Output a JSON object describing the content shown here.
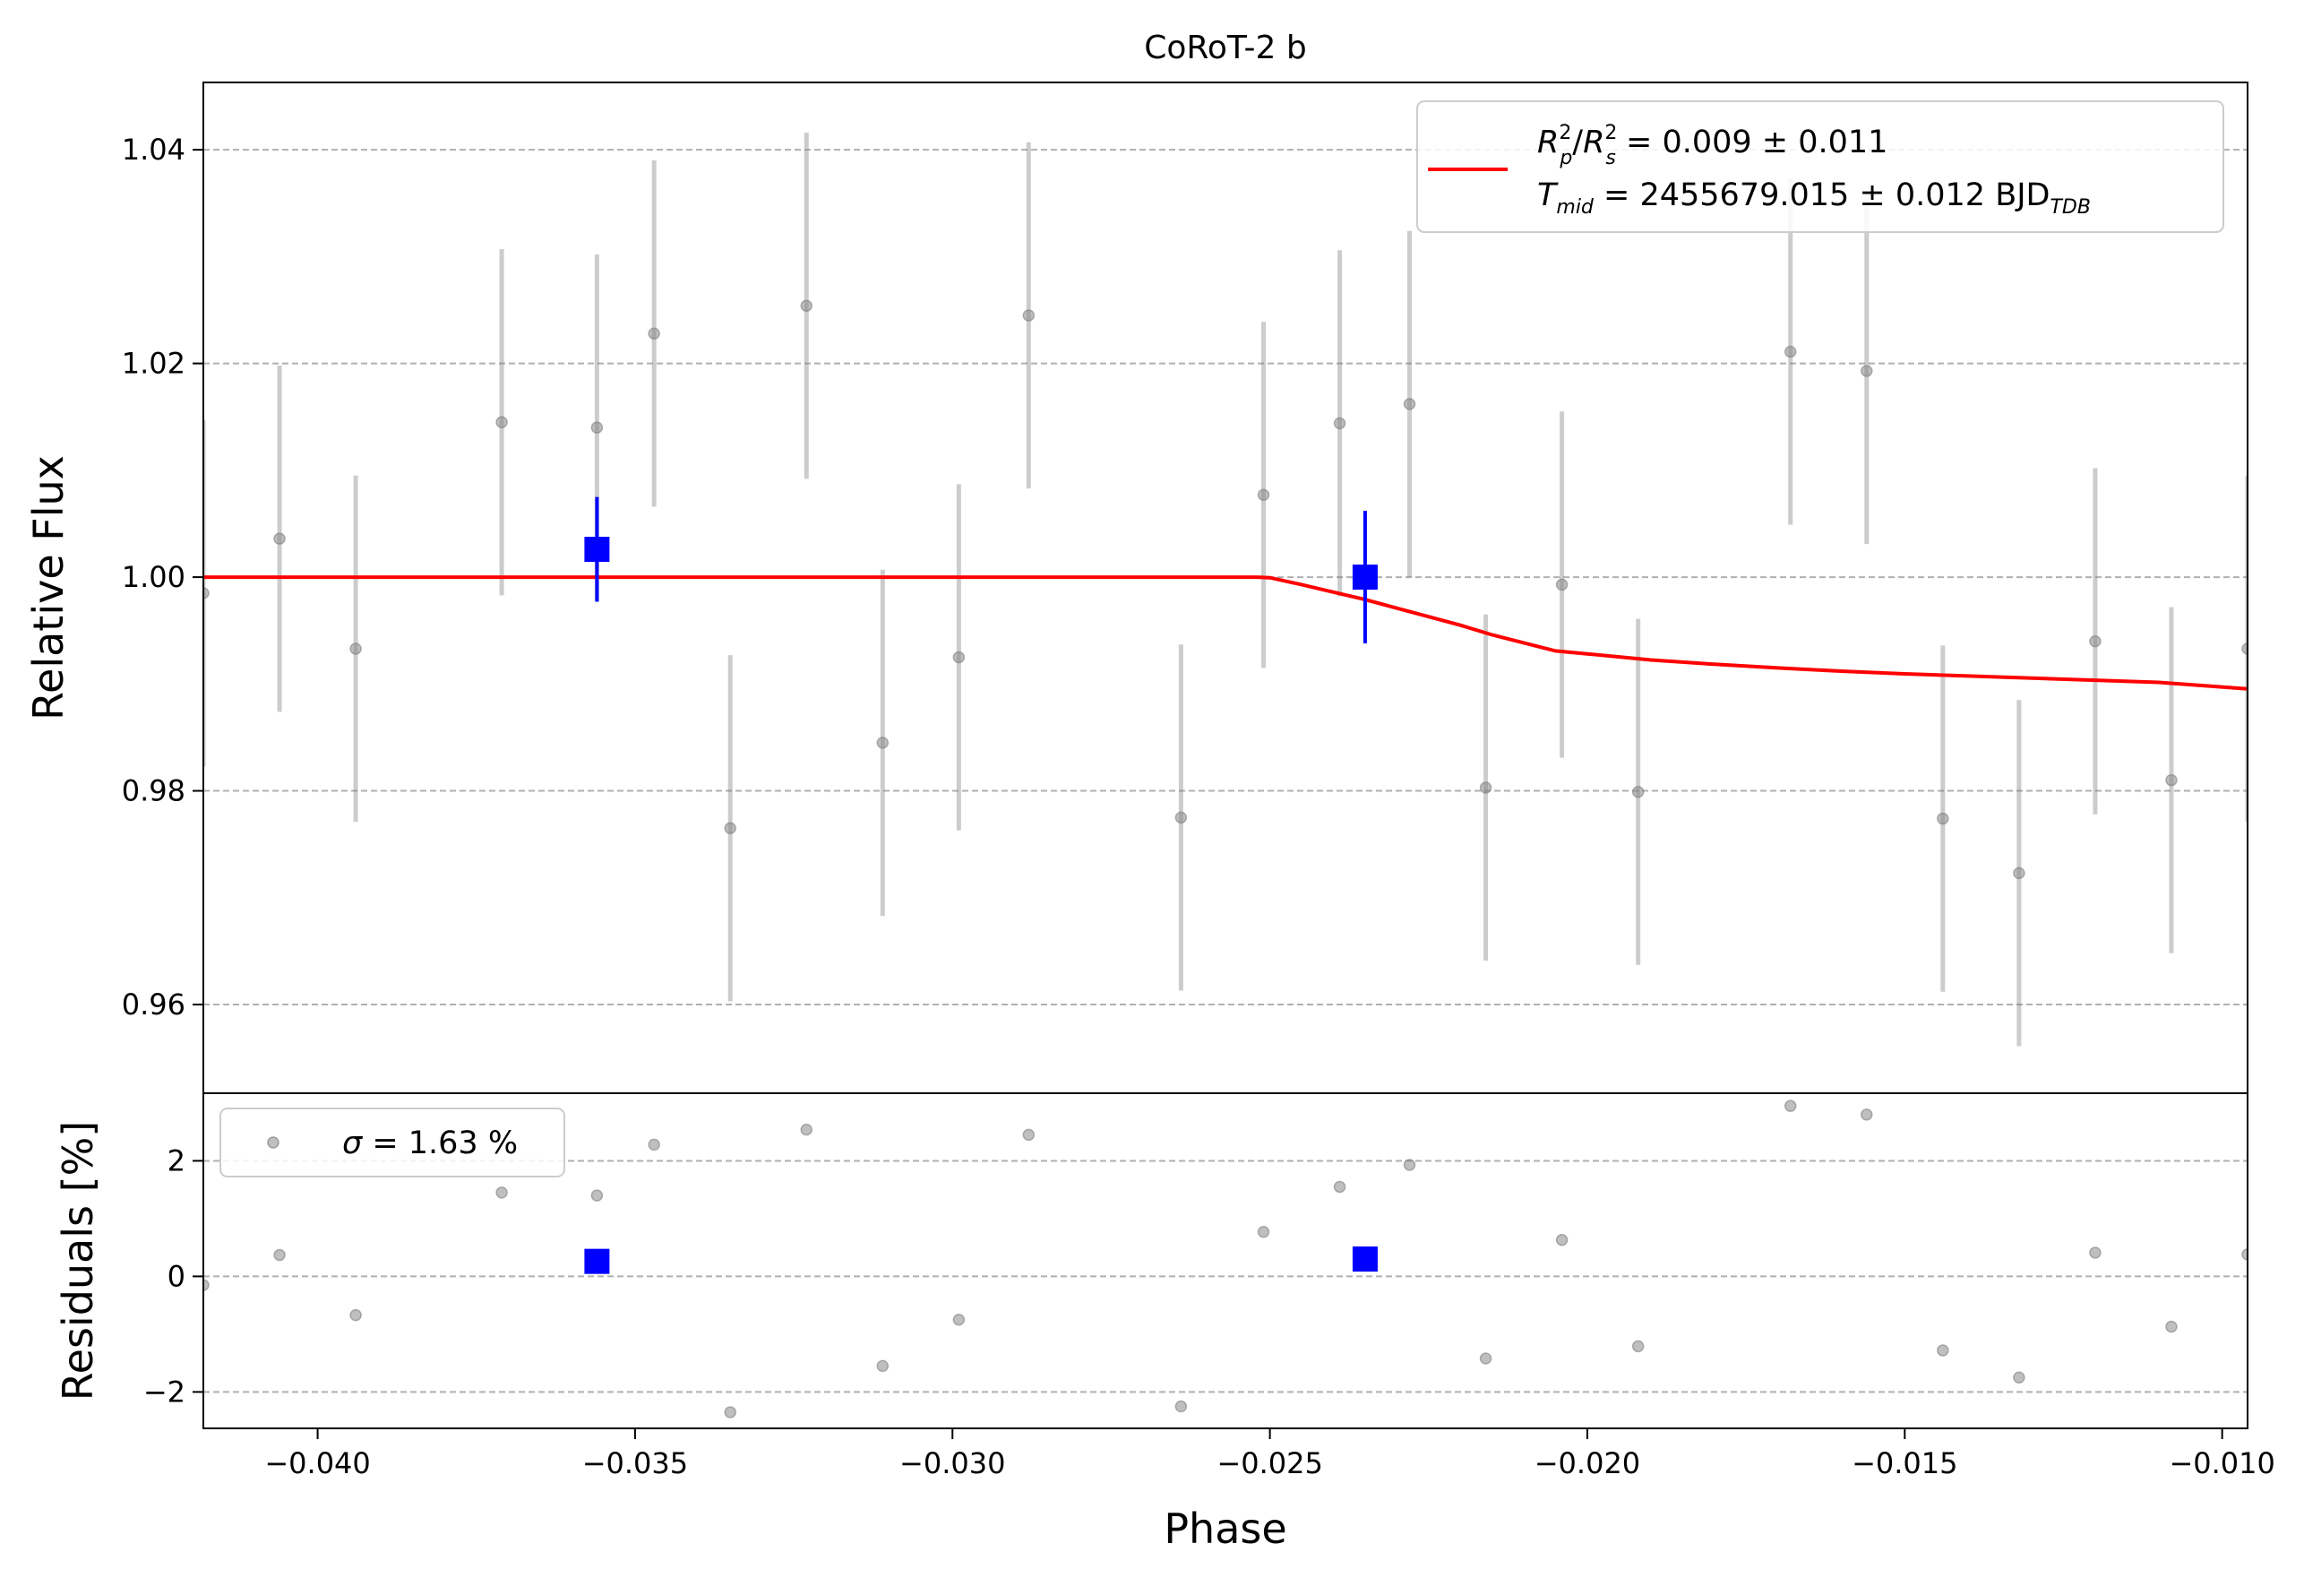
{
  "chart_data": [
    {
      "type": "scatter",
      "title": "CoRoT-2 b",
      "xlabel": "",
      "ylabel": "Relative Flux",
      "xlim": [
        -0.0418,
        -0.0096
      ],
      "ylim": [
        0.9517,
        1.0463
      ],
      "yticks": [
        0.96,
        0.98,
        1.0,
        1.02,
        1.04
      ],
      "ytick_labels": [
        "0.96",
        "0.98",
        "1.00",
        "1.02",
        "1.04"
      ],
      "grid": "horizontal dashed",
      "legend_position": "top-right",
      "legend": {
        "line1": {
          "a": "R",
          "a_sup": "2",
          "a_sub": "p",
          "sep": "/",
          "b": "R",
          "b_sup": "2",
          "b_sub": "s",
          "value": " = 0.009 ± 0.011"
        },
        "line2": {
          "a": "T",
          "a_sub": "mid",
          "value": " = 2455679.015 ± 0.012 BJD",
          "unit_sub": "TDB"
        }
      },
      "data_points": {
        "color": "#808080",
        "x": [
          -0.0418,
          -0.0406,
          -0.0394,
          -0.0371,
          -0.0356,
          -0.0347,
          -0.0335,
          -0.0323,
          -0.0311,
          -0.0299,
          -0.0288,
          -0.0264,
          -0.0251,
          -0.0239,
          -0.0228,
          -0.0216,
          -0.0204,
          -0.0192,
          -0.0168,
          -0.0156,
          -0.0144,
          -0.0132,
          -0.012,
          -0.0108,
          -0.0096
        ],
        "y": [
          0.9985,
          1.0036,
          0.9933,
          1.0145,
          1.014,
          1.0228,
          0.9765,
          1.0254,
          0.9845,
          0.9925,
          1.0245,
          0.9775,
          1.0077,
          1.0144,
          1.0162,
          0.9803,
          0.9993,
          0.9799,
          1.0211,
          1.0193,
          0.9774,
          0.9723,
          0.994,
          0.981,
          0.9933
        ],
        "yerr": [
          0.0162,
          0.0162,
          0.0162,
          0.0162,
          0.0162,
          0.0162,
          0.0162,
          0.0162,
          0.0162,
          0.0162,
          0.0162,
          0.0162,
          0.0162,
          0.0162,
          0.0162,
          0.0162,
          0.0162,
          0.0162,
          0.0162,
          0.0162,
          0.0162,
          0.0162,
          0.0162,
          0.0162,
          0.0162
        ]
      },
      "binned_points": {
        "color": "#0000ff",
        "x": [
          -0.0356,
          -0.0235
        ],
        "y": [
          1.0026,
          1.0
        ],
        "yerr": [
          0.0049,
          0.0062
        ]
      },
      "model_curve": {
        "color": "#ff0000",
        "x": [
          -0.0418,
          -0.0252,
          -0.025,
          -0.0245,
          -0.024,
          -0.0235,
          -0.023,
          -0.0225,
          -0.022,
          -0.0215,
          -0.021,
          -0.0205,
          -0.02,
          -0.019,
          -0.018,
          -0.017,
          -0.016,
          -0.015,
          -0.014,
          -0.013,
          -0.012,
          -0.011,
          -0.0096
        ],
        "y": [
          1.0,
          1.0,
          0.99995,
          0.9993,
          0.9986,
          0.9979,
          0.9971,
          0.9963,
          0.9955,
          0.9946,
          0.99385,
          0.9931,
          0.99282,
          0.99225,
          0.99185,
          0.9915,
          0.9912,
          0.99095,
          0.99075,
          0.99055,
          0.99035,
          0.99015,
          0.98955
        ]
      }
    },
    {
      "type": "scatter",
      "title": "",
      "xlabel": "Phase",
      "ylabel": "Residuals [%]",
      "xlim": [
        -0.0418,
        -0.0096
      ],
      "ylim": [
        -2.63,
        3.17
      ],
      "xticks": [
        -0.04,
        -0.035,
        -0.03,
        -0.025,
        -0.02,
        -0.015,
        -0.01
      ],
      "xtick_labels": [
        "−0.040",
        "−0.035",
        "−0.030",
        "−0.025",
        "−0.020",
        "−0.015",
        "−0.010"
      ],
      "yticks": [
        -2,
        0,
        2
      ],
      "ytick_labels": [
        "−2",
        "0",
        "2"
      ],
      "grid": "horizontal dashed",
      "legend_position": "top-left",
      "legend": {
        "symbol": "σ",
        "value": " = 1.63 %"
      },
      "residual_points": {
        "color": "#808080",
        "x": [
          -0.0418,
          -0.0406,
          -0.0394,
          -0.0371,
          -0.0356,
          -0.0347,
          -0.0335,
          -0.0323,
          -0.0311,
          -0.0299,
          -0.0288,
          -0.0264,
          -0.0251,
          -0.0239,
          -0.0228,
          -0.0216,
          -0.0204,
          -0.0192,
          -0.0168,
          -0.0156,
          -0.0144,
          -0.0132,
          -0.012,
          -0.0108,
          -0.0096
        ],
        "y": [
          -0.15,
          0.37,
          -0.67,
          1.45,
          1.4,
          2.28,
          -2.35,
          2.54,
          -1.55,
          -0.75,
          2.45,
          -2.25,
          0.77,
          1.55,
          1.93,
          -1.42,
          0.63,
          -1.21,
          2.95,
          2.8,
          -1.28,
          -1.75,
          0.41,
          -0.87,
          0.38
        ]
      },
      "binned_points": {
        "color": "#0000ff",
        "x": [
          -0.0356,
          -0.0235
        ],
        "y": [
          0.26,
          0.3
        ]
      }
    }
  ]
}
